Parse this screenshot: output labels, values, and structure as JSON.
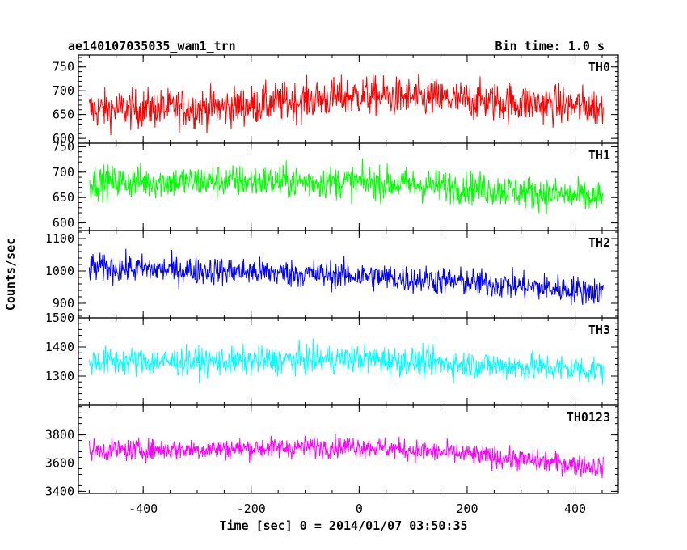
{
  "header": {
    "title": "ae140107035035_wam1_trn",
    "bin_time": "Bin time: 1.0 s"
  },
  "chart_data": {
    "type": "line",
    "title": "ae140107035035_wam1_trn",
    "subtitle": "Bin time: 1.0 s",
    "xlabel": "Time [sec] 0 = 2014/01/07 03:50:35",
    "ylabel": "Counts/sec",
    "xlim": [
      -520,
      480
    ],
    "x_ticks": [
      -400,
      -200,
      0,
      200,
      400
    ],
    "x_range_data": [
      -500,
      452
    ],
    "bin_seconds": 1.0,
    "grid": false,
    "panels": [
      {
        "name": "TH0",
        "color": "#ff0000",
        "ylim": [
          590,
          775
        ],
        "y_ticks": [
          600,
          650,
          700,
          750
        ],
        "trend": [
          [
            -500,
            660
          ],
          [
            -250,
            665
          ],
          [
            0,
            690
          ],
          [
            200,
            680
          ],
          [
            452,
            665
          ]
        ],
        "spread": 38
      },
      {
        "name": "TH1",
        "color": "#00ff00",
        "ylim": [
          585,
          757
        ],
        "y_ticks": [
          600,
          650,
          700,
          750
        ],
        "trend": [
          [
            -500,
            680
          ],
          [
            -250,
            682
          ],
          [
            0,
            680
          ],
          [
            200,
            670
          ],
          [
            452,
            648
          ]
        ],
        "spread": 30
      },
      {
        "name": "TH2",
        "color": "#0000ff",
        "ylim": [
          855,
          1125
        ],
        "y_ticks": [
          900,
          1000,
          1100
        ],
        "trend": [
          [
            -500,
            1010
          ],
          [
            -250,
            1000
          ],
          [
            0,
            985
          ],
          [
            200,
            965
          ],
          [
            452,
            935
          ]
        ],
        "spread": 40
      },
      {
        "name": "TH3",
        "color": "#00ffff",
        "ylim": [
          1200,
          1500
        ],
        "y_ticks": [
          1300,
          1400,
          1500
        ],
        "trend": [
          [
            -500,
            1350
          ],
          [
            -250,
            1350
          ],
          [
            0,
            1360
          ],
          [
            200,
            1340
          ],
          [
            452,
            1320
          ]
        ],
        "spread": 45
      },
      {
        "name": "TH0123",
        "color": "#ff00ff",
        "ylim": [
          3385,
          4010
        ],
        "y_ticks": [
          3400,
          3600,
          3800
        ],
        "trend": [
          [
            -500,
            3690
          ],
          [
            -250,
            3700
          ],
          [
            0,
            3720
          ],
          [
            200,
            3660
          ],
          [
            452,
            3570
          ]
        ],
        "spread": 70
      }
    ]
  }
}
